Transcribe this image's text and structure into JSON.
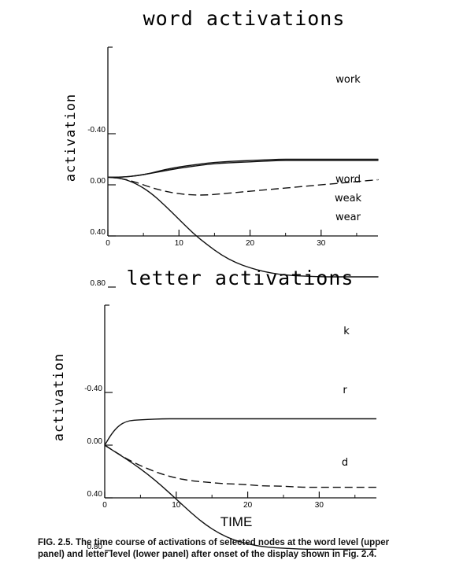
{
  "caption": {
    "label": "FIG. 2.5.",
    "text": "The time course of activations of selected nodes at the word level (upper panel) and letter level (lower panel) after onset of the display shown in Fig. 2.4."
  },
  "x_axis_label": "TIME",
  "chart_data": [
    {
      "type": "line",
      "title": "word activations",
      "ylabel": "activation",
      "xlabel": "",
      "xlim": [
        0,
        38
      ],
      "ylim": [
        -0.4,
        1.0
      ],
      "yticks": [
        -0.4,
        0.0,
        0.4,
        0.8
      ],
      "ytick_labels": [
        "-0.40",
        "0.00",
        "0.40",
        "0.80"
      ],
      "xticks": [
        0,
        10,
        20,
        30
      ],
      "xtick_labels": [
        "0",
        "10",
        "20",
        "30"
      ],
      "series": [
        {
          "name": "work",
          "style": "solid",
          "x": [
            0,
            2,
            4,
            6,
            8,
            10,
            12,
            14,
            16,
            18,
            20,
            22,
            24,
            26,
            28,
            30,
            32,
            34,
            36,
            38
          ],
          "y": [
            -0.06,
            -0.05,
            -0.01,
            0.06,
            0.16,
            0.27,
            0.38,
            0.47,
            0.55,
            0.61,
            0.65,
            0.68,
            0.7,
            0.71,
            0.715,
            0.72,
            0.72,
            0.72,
            0.72,
            0.72
          ]
        },
        {
          "name": "word",
          "style": "dashed",
          "x": [
            0,
            2,
            4,
            6,
            8,
            10,
            12,
            14,
            16,
            18,
            20,
            22,
            24,
            26,
            28,
            30,
            32,
            34,
            36,
            38
          ],
          "y": [
            -0.06,
            -0.05,
            -0.02,
            0.02,
            0.05,
            0.07,
            0.08,
            0.08,
            0.07,
            0.06,
            0.05,
            0.04,
            0.03,
            0.02,
            0.01,
            0.0,
            -0.01,
            -0.02,
            -0.03,
            -0.04
          ]
        },
        {
          "name": "weak",
          "style": "solid",
          "x": [
            0,
            2,
            4,
            6,
            8,
            10,
            12,
            14,
            16,
            18,
            20,
            22,
            24,
            26,
            28,
            30,
            32,
            34,
            36,
            38
          ],
          "y": [
            -0.06,
            -0.06,
            -0.07,
            -0.09,
            -0.11,
            -0.13,
            -0.145,
            -0.16,
            -0.17,
            -0.175,
            -0.18,
            -0.185,
            -0.19,
            -0.19,
            -0.19,
            -0.19,
            -0.19,
            -0.19,
            -0.19,
            -0.19
          ]
        },
        {
          "name": "wear",
          "style": "solid",
          "x": [
            0,
            2,
            4,
            6,
            8,
            10,
            12,
            14,
            16,
            18,
            20,
            22,
            24,
            26,
            28,
            30,
            32,
            34,
            36,
            38
          ],
          "y": [
            -0.06,
            -0.06,
            -0.07,
            -0.09,
            -0.12,
            -0.14,
            -0.155,
            -0.17,
            -0.18,
            -0.185,
            -0.19,
            -0.195,
            -0.2,
            -0.2,
            -0.2,
            -0.2,
            -0.2,
            -0.2,
            -0.2,
            -0.2
          ]
        }
      ]
    },
    {
      "type": "line",
      "title": "letter activations",
      "ylabel": "activation",
      "xlabel": "TIME",
      "xlim": [
        0,
        38
      ],
      "ylim": [
        -0.4,
        1.0
      ],
      "yticks": [
        -0.4,
        0.0,
        0.4,
        0.8
      ],
      "ytick_labels": [
        "-0.40",
        "0.00",
        "0.40",
        "0.80"
      ],
      "xticks": [
        0,
        10,
        20,
        30
      ],
      "xtick_labels": [
        "0",
        "10",
        "20",
        "30"
      ],
      "series": [
        {
          "name": "k",
          "style": "solid",
          "x": [
            0,
            2,
            4,
            6,
            8,
            10,
            12,
            14,
            16,
            18,
            20,
            22,
            24,
            26,
            28,
            30,
            32,
            34,
            36,
            38
          ],
          "y": [
            0.0,
            0.07,
            0.14,
            0.22,
            0.31,
            0.41,
            0.51,
            0.6,
            0.67,
            0.72,
            0.75,
            0.77,
            0.78,
            0.785,
            0.79,
            0.79,
            0.79,
            0.79,
            0.79,
            0.79
          ]
        },
        {
          "name": "r",
          "style": "dashed",
          "x": [
            0,
            2,
            4,
            6,
            8,
            10,
            12,
            14,
            16,
            18,
            20,
            22,
            24,
            26,
            28,
            30,
            32,
            34,
            36,
            38
          ],
          "y": [
            0.0,
            0.07,
            0.13,
            0.18,
            0.22,
            0.25,
            0.27,
            0.28,
            0.29,
            0.295,
            0.3,
            0.31,
            0.31,
            0.315,
            0.32,
            0.32,
            0.32,
            0.32,
            0.32,
            0.32
          ]
        },
        {
          "name": "d",
          "style": "solid",
          "x": [
            0,
            1,
            2,
            3,
            4,
            6,
            8,
            10,
            14,
            18,
            22,
            26,
            30,
            34,
            38
          ],
          "y": [
            0.0,
            -0.09,
            -0.15,
            -0.18,
            -0.19,
            -0.195,
            -0.2,
            -0.2,
            -0.2,
            -0.2,
            -0.2,
            -0.2,
            -0.2,
            -0.2,
            -0.2
          ]
        }
      ]
    }
  ]
}
